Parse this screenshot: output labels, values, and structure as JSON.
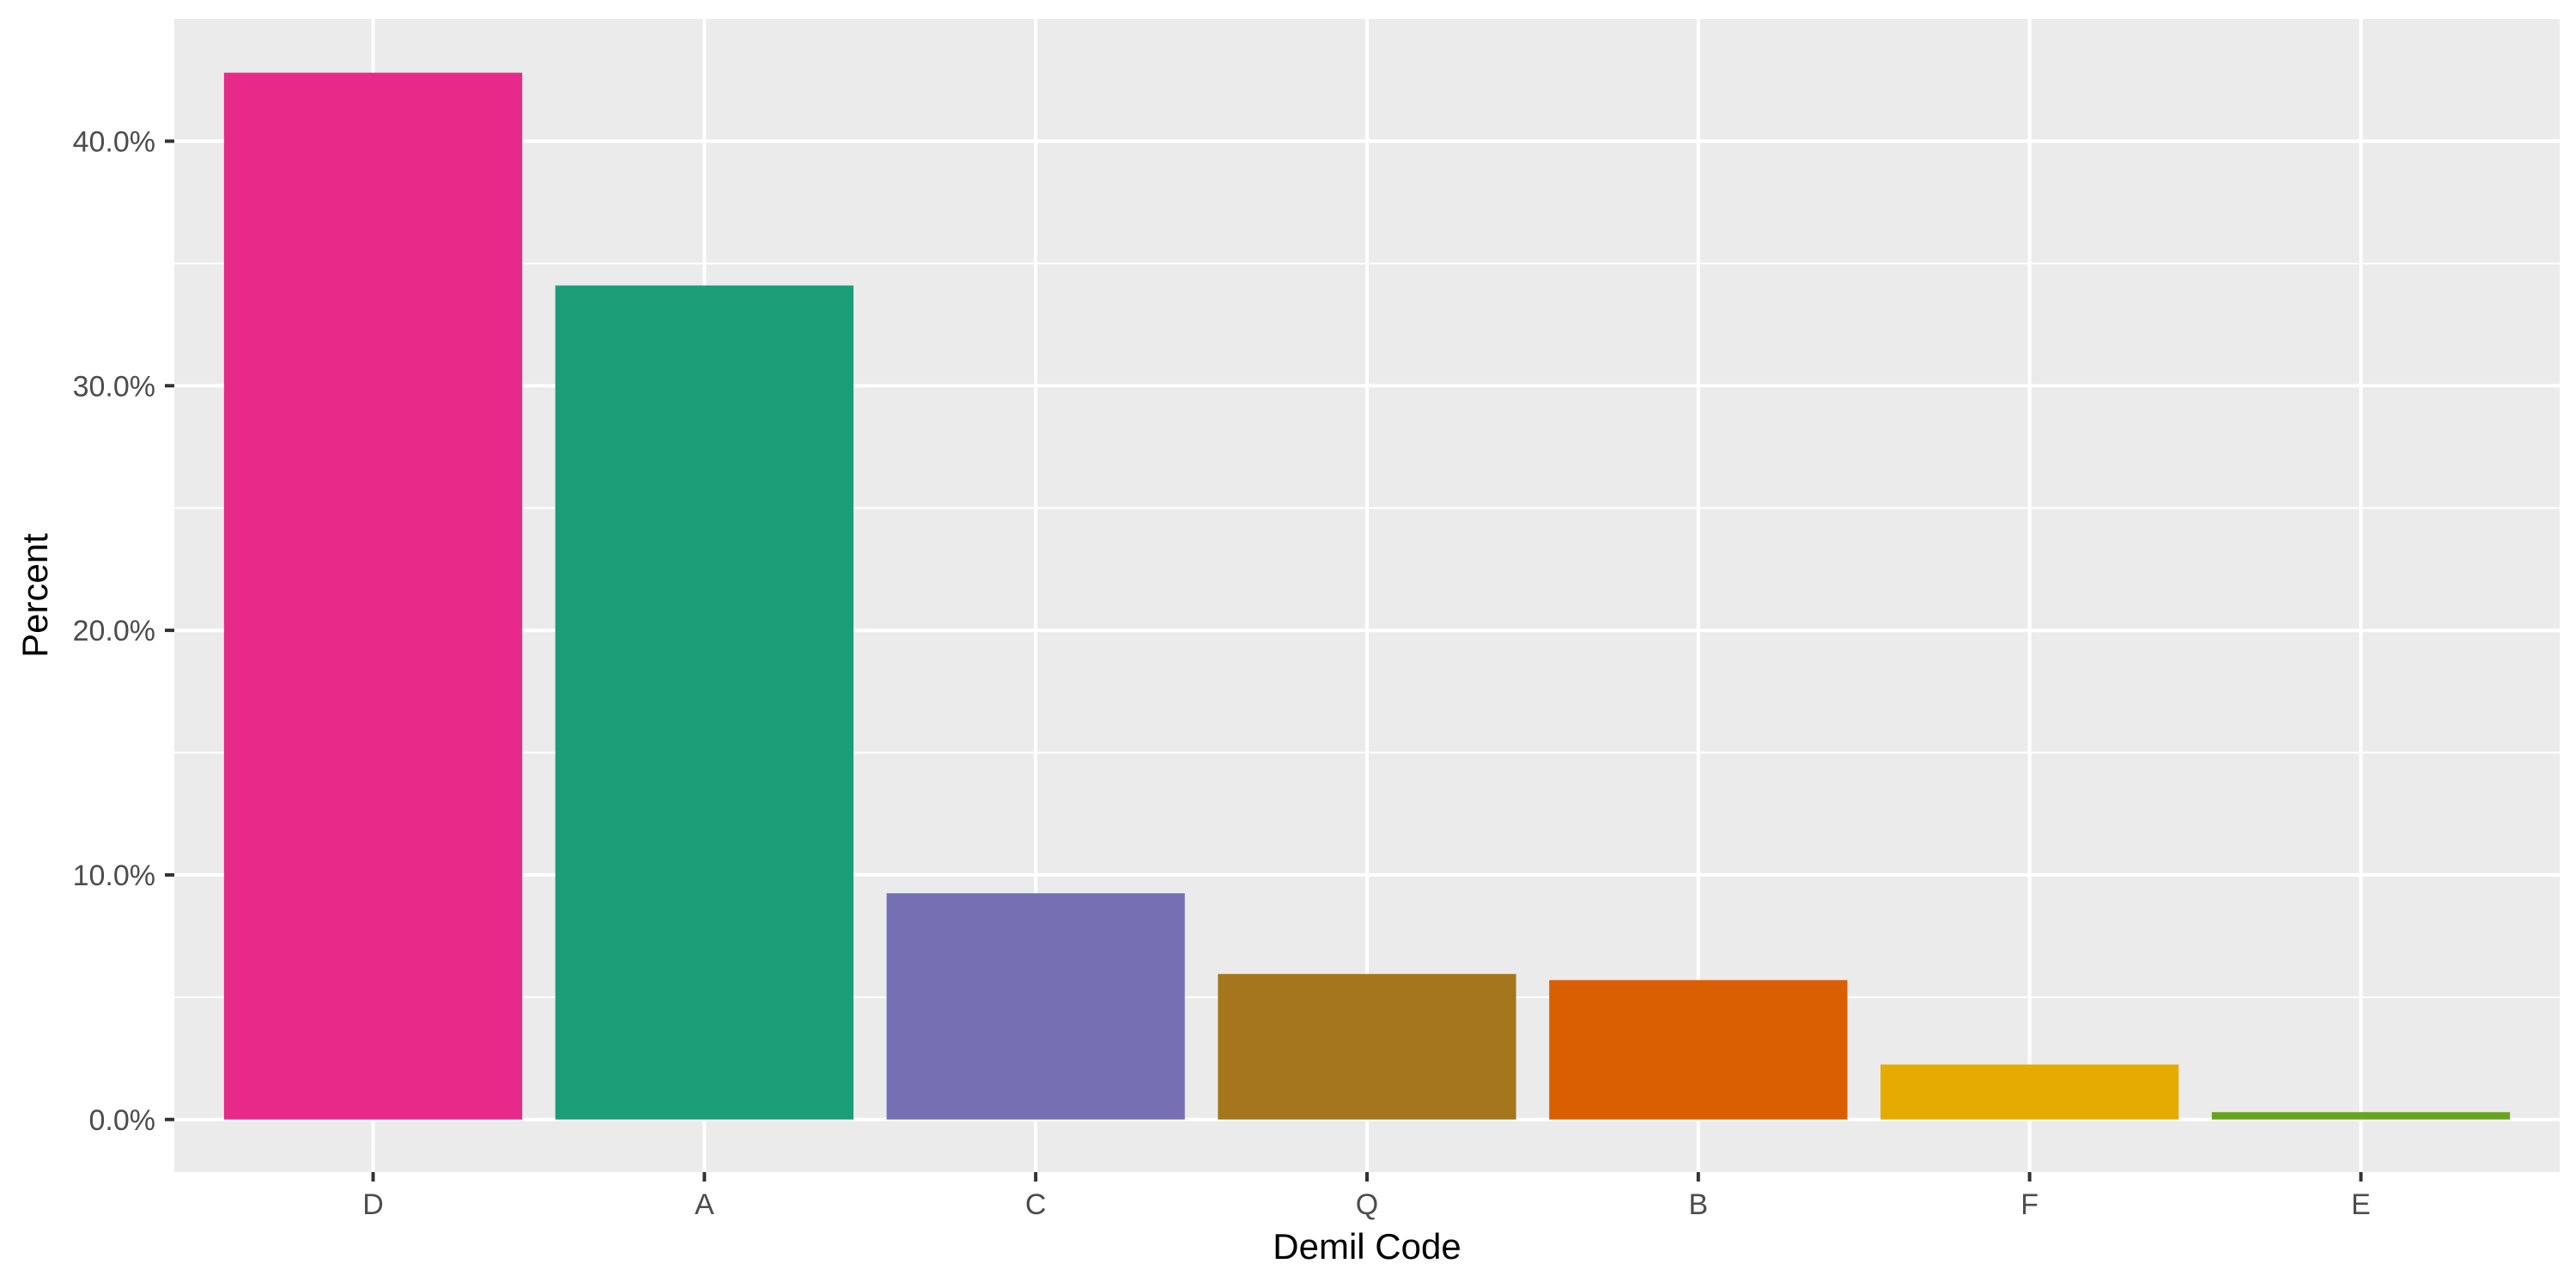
{
  "chart_data": {
    "type": "bar",
    "title": "",
    "xlabel": "Demil Code",
    "ylabel": "Percent",
    "categories": [
      "D",
      "A",
      "C",
      "Q",
      "B",
      "F",
      "E"
    ],
    "values": [
      42.8,
      34.1,
      9.25,
      5.95,
      5.7,
      2.25,
      0.3
    ],
    "colors": [
      "#E7298A",
      "#1B9E77",
      "#7570B3",
      "#A6761D",
      "#D95F02",
      "#E6AB02",
      "#66A61E"
    ],
    "ylim": [
      -2.15,
      45.0
    ],
    "yticks": [
      0,
      10,
      20,
      30,
      40
    ],
    "ytick_labels": [
      "0.0%",
      "10.0%",
      "20.0%",
      "30.0%",
      "40.0%"
    ],
    "y_minor_ticks": [
      5,
      15,
      25,
      35
    ],
    "grid": true,
    "legend": "none",
    "panel_background": "#EBEBEB",
    "grid_color": "#FFFFFF"
  }
}
